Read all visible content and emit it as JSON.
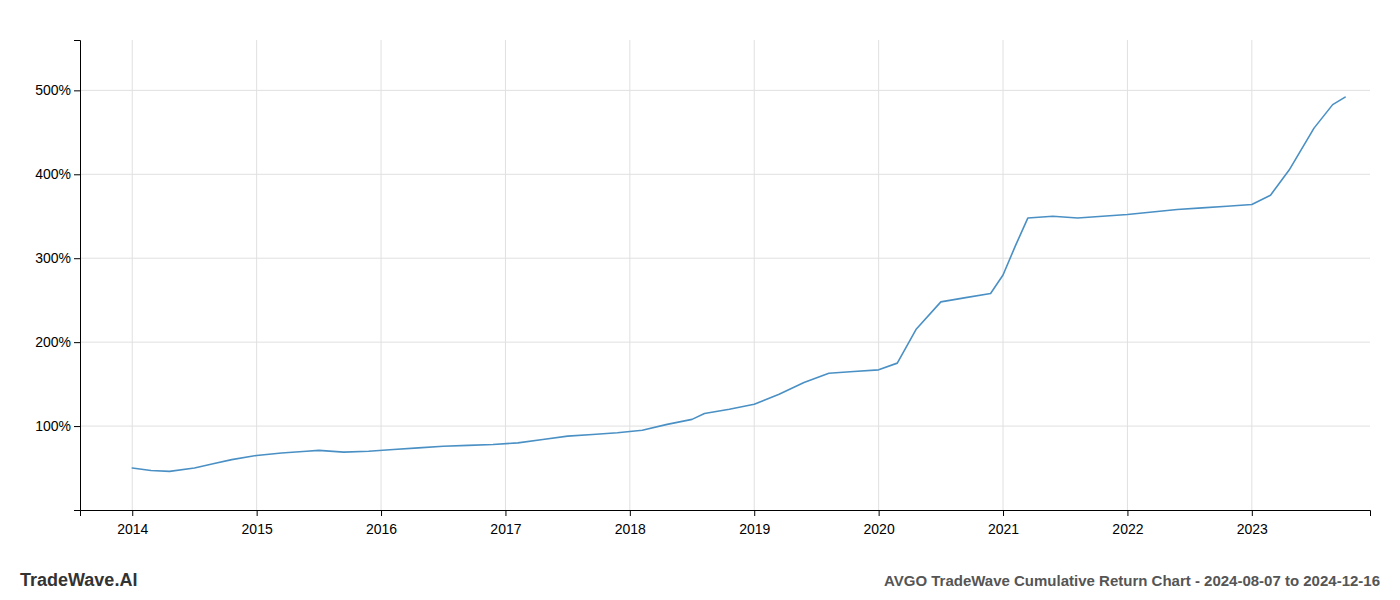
{
  "chart_data": {
    "type": "line",
    "title": "AVGO TradeWave Cumulative Return Chart - 2024-08-07 to 2024-12-16",
    "annotations": [
      "TradeWave.AI"
    ],
    "x": [
      2014.0,
      2014.15,
      2014.3,
      2014.5,
      2014.65,
      2014.8,
      2015.0,
      2015.2,
      2015.4,
      2015.5,
      2015.7,
      2015.9,
      2016.1,
      2016.3,
      2016.5,
      2016.7,
      2016.9,
      2017.1,
      2017.3,
      2017.5,
      2017.7,
      2017.9,
      2018.1,
      2018.3,
      2018.5,
      2018.6,
      2018.8,
      2019.0,
      2019.2,
      2019.4,
      2019.6,
      2019.8,
      2020.0,
      2020.15,
      2020.3,
      2020.5,
      2020.7,
      2020.9,
      2021.0,
      2021.1,
      2021.2,
      2021.4,
      2021.6,
      2021.8,
      2022.0,
      2022.2,
      2022.4,
      2022.6,
      2022.8,
      2023.0,
      2023.15,
      2023.3,
      2023.5,
      2023.65,
      2023.75
    ],
    "values": [
      50,
      47,
      46,
      50,
      55,
      60,
      65,
      68,
      70,
      71,
      69,
      70,
      72,
      74,
      76,
      77,
      78,
      80,
      84,
      88,
      90,
      92,
      95,
      102,
      108,
      115,
      120,
      126,
      138,
      152,
      163,
      165,
      167,
      175,
      215,
      248,
      253,
      258,
      280,
      315,
      348,
      350,
      348,
      350,
      352,
      355,
      358,
      360,
      362,
      364,
      375,
      405,
      455,
      483,
      492
    ],
    "color": "#4a90c4",
    "xlim": [
      2013.58,
      2023.95
    ],
    "ylim": [
      0,
      560
    ],
    "xticks": [
      2014,
      2015,
      2016,
      2017,
      2018,
      2019,
      2020,
      2021,
      2022,
      2023
    ],
    "yticks": [
      {
        "value": 100,
        "label": "100%"
      },
      {
        "value": 200,
        "label": "200%"
      },
      {
        "value": 300,
        "label": "300%"
      },
      {
        "value": 400,
        "label": "400%"
      },
      {
        "value": 500,
        "label": "500%"
      }
    ],
    "grid": true
  }
}
